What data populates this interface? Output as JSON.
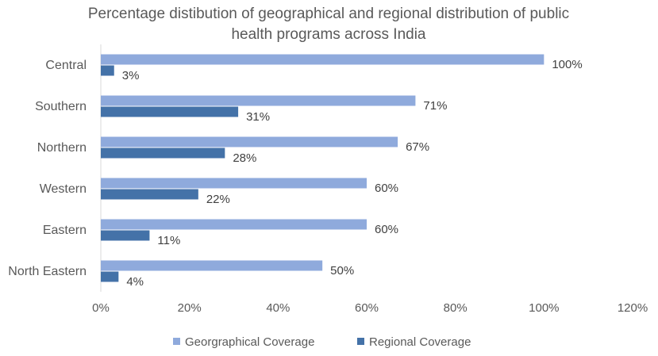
{
  "chart_data": {
    "type": "bar",
    "orientation": "horizontal",
    "title": "Percentage distibution of geographical and regional distribution of public health programs across India",
    "title_lines": [
      "Percentage distibution of geographical and regional distribution of public",
      "health programs across India"
    ],
    "xlabel": "",
    "ylabel": "",
    "categories": [
      "Central",
      "Southern",
      "Northern",
      "Western",
      "Eastern",
      "North Eastern"
    ],
    "series": [
      {
        "name": "Georgraphical Coverage",
        "values": [
          100,
          71,
          67,
          60,
          60,
          50
        ],
        "labels": [
          "100%",
          "71%",
          "67%",
          "60%",
          "60%",
          "50%"
        ],
        "color": "#8FAADC"
      },
      {
        "name": "Regional Coverage",
        "values": [
          3,
          31,
          28,
          22,
          11,
          4
        ],
        "labels": [
          "3%",
          "31%",
          "28%",
          "22%",
          "11%",
          "4%"
        ],
        "color": "#4472A8"
      }
    ],
    "xlim": [
      0,
      120
    ],
    "xticks": [
      0,
      20,
      40,
      60,
      80,
      100,
      120
    ],
    "xtick_labels": [
      "0%",
      "20%",
      "40%",
      "60%",
      "80%",
      "100%",
      "120%"
    ],
    "grid": false,
    "legend_position": "bottom"
  }
}
